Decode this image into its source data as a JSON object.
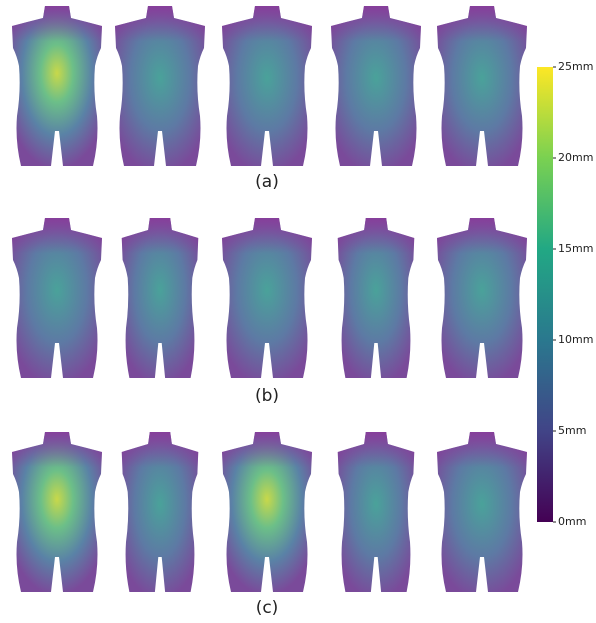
{
  "panels": [
    {
      "label": "(a)"
    },
    {
      "label": "(b)"
    },
    {
      "label": "(c)"
    }
  ],
  "colorbar": {
    "lim": [
      0,
      25
    ],
    "ticks": [
      {
        "value": 0,
        "label": "0mm"
      },
      {
        "value": 5,
        "label": "5mm"
      },
      {
        "value": 10,
        "label": "10mm"
      },
      {
        "value": 15,
        "label": "15mm"
      },
      {
        "value": 20,
        "label": "20mm"
      },
      {
        "value": 25,
        "label": "25mm"
      }
    ]
  }
}
